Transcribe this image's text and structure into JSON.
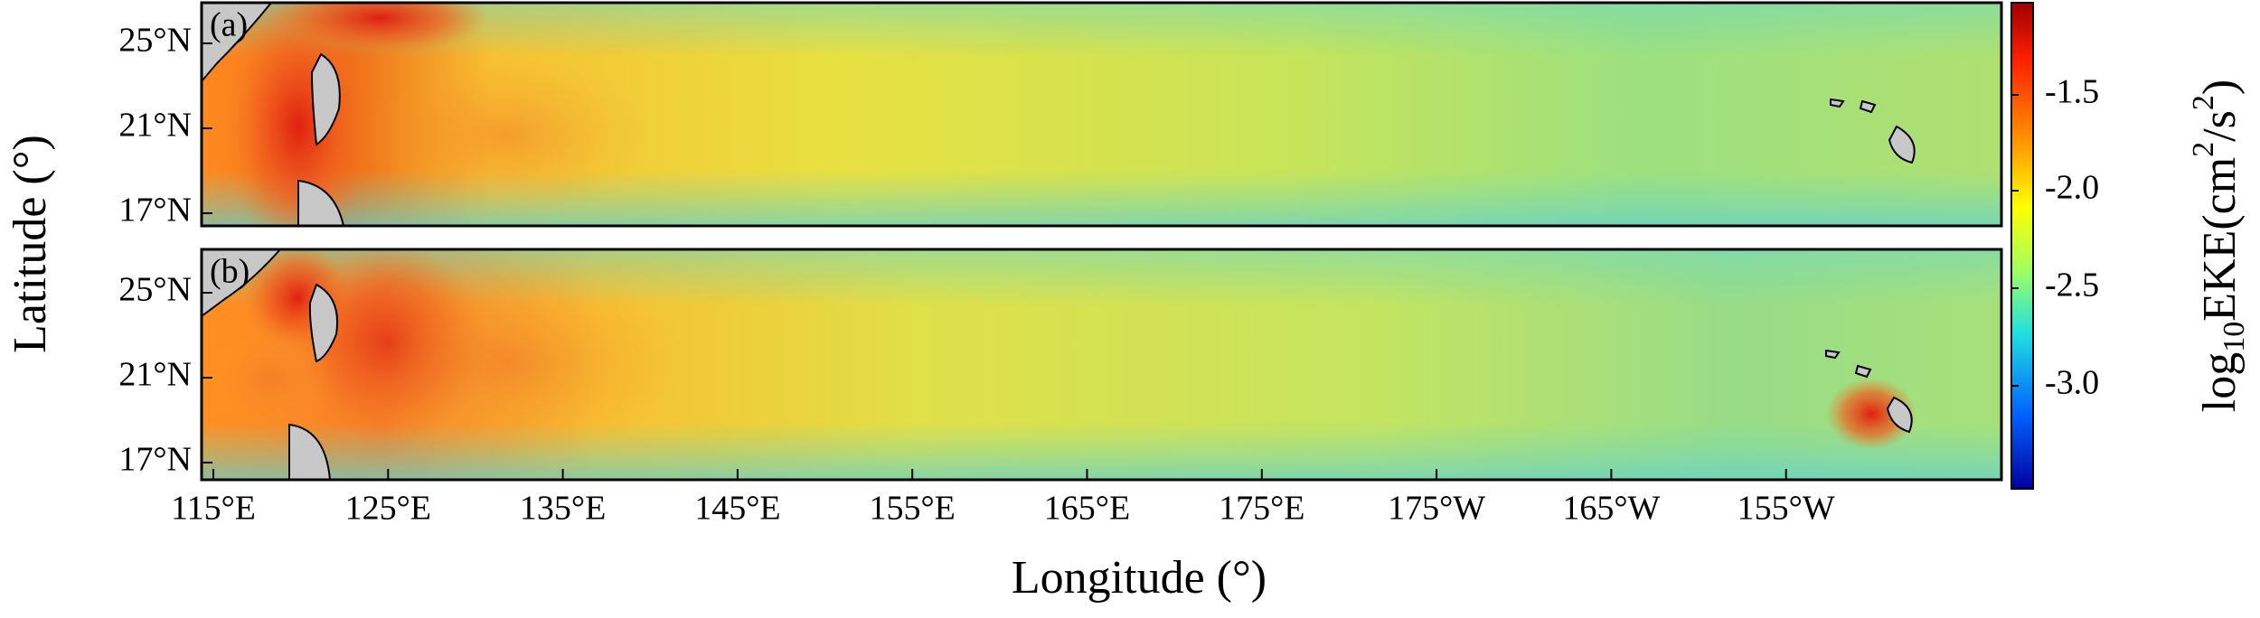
{
  "panels": [
    {
      "label": "(a)"
    },
    {
      "label": "(b)"
    }
  ],
  "y_axis": {
    "label": "Latitude (°)",
    "ticks": [
      "25°N",
      "21°N",
      "17°N"
    ]
  },
  "x_axis": {
    "label": "Longitude (°)",
    "ticks": [
      "115°E",
      "125°E",
      "135°E",
      "145°E",
      "155°E",
      "165°E",
      "175°E",
      "175°W",
      "165°W",
      "155°W"
    ]
  },
  "colorbar": {
    "label": [
      "log",
      "10",
      "EKE(cm",
      "2",
      "/s",
      "2",
      ")"
    ],
    "ticks": [
      "-1.5",
      "-2.0",
      "-2.5",
      "-3.0"
    ]
  }
}
